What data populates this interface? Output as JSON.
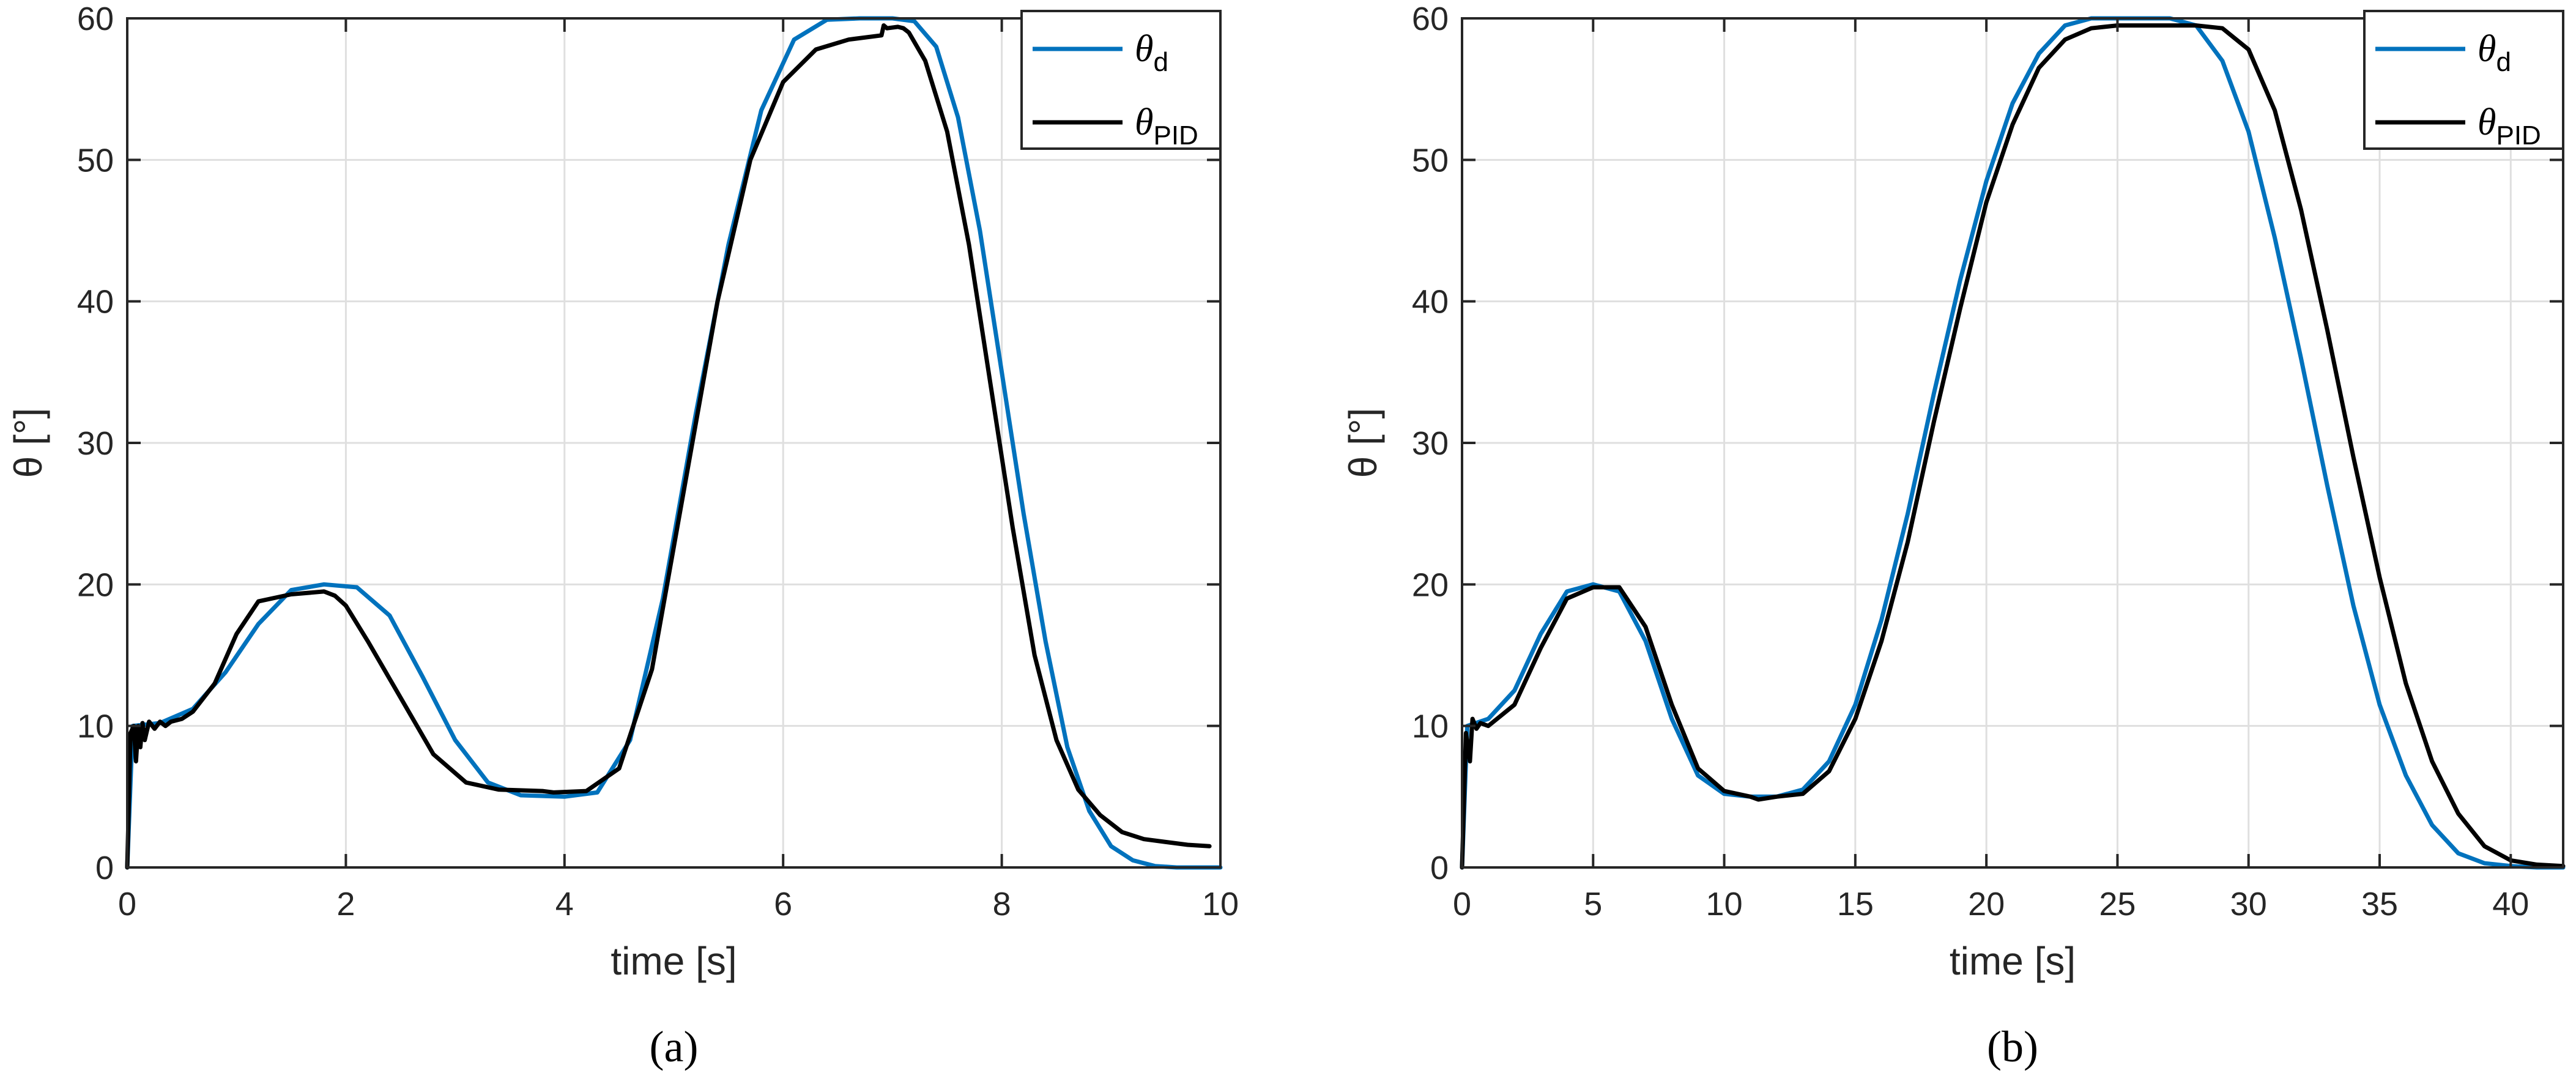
{
  "chart_data": [
    {
      "type": "line",
      "panel_label": "(a)",
      "xlabel": "time [s]",
      "ylabel": "θ [°]",
      "xlim": [
        0,
        10
      ],
      "ylim": [
        0,
        60
      ],
      "xticks": [
        0,
        2,
        4,
        6,
        8,
        10
      ],
      "yticks": [
        0,
        10,
        20,
        30,
        40,
        50,
        60
      ],
      "grid": true,
      "legend_position": "top-right",
      "colors": {
        "desired": "#0072BD",
        "pid": "#000000"
      },
      "series": [
        {
          "name": "θd",
          "legend_main": "θ",
          "legend_sub": "d",
          "x": [
            0,
            0.05,
            0.3,
            0.6,
            0.9,
            1.2,
            1.5,
            1.8,
            2.1,
            2.4,
            2.7,
            3.0,
            3.3,
            3.6,
            4.0,
            4.3,
            4.6,
            4.9,
            5.2,
            5.5,
            5.8,
            6.1,
            6.4,
            6.7,
            7.0,
            7.2,
            7.4,
            7.6,
            7.8,
            8.0,
            8.2,
            8.4,
            8.6,
            8.8,
            9.0,
            9.2,
            9.4,
            9.6,
            9.8,
            10.0
          ],
          "y": [
            0,
            10,
            10.2,
            11.2,
            13.8,
            17.2,
            19.6,
            20,
            19.8,
            17.8,
            13.5,
            9,
            6,
            5.1,
            5,
            5.3,
            9,
            19,
            32,
            44,
            53.5,
            58.5,
            59.9,
            60,
            60,
            59.8,
            58,
            53,
            45,
            35,
            25,
            16,
            8.5,
            4,
            1.5,
            0.5,
            0.1,
            0,
            0,
            0
          ]
        },
        {
          "name": "θPID",
          "legend_main": "θ",
          "legend_sub": "PID",
          "x": [
            0,
            0.03,
            0.06,
            0.08,
            0.1,
            0.12,
            0.14,
            0.16,
            0.2,
            0.25,
            0.3,
            0.35,
            0.4,
            0.5,
            0.6,
            0.8,
            1.0,
            1.2,
            1.5,
            1.8,
            1.9,
            2.0,
            2.2,
            2.5,
            2.8,
            3.1,
            3.4,
            3.8,
            3.9,
            4.2,
            4.5,
            4.8,
            5.1,
            5.4,
            5.7,
            6.0,
            6.3,
            6.6,
            6.9,
            6.92,
            6.95,
            7.05,
            7.1,
            7.15,
            7.3,
            7.5,
            7.7,
            7.9,
            8.1,
            8.3,
            8.5,
            8.7,
            8.9,
            9.1,
            9.3,
            9.5,
            9.7,
            9.9
          ],
          "y": [
            0,
            9.5,
            10,
            7.5,
            10,
            8.5,
            10.2,
            9,
            10.3,
            9.8,
            10.3,
            10,
            10.3,
            10.5,
            11,
            13,
            16.5,
            18.8,
            19.3,
            19.5,
            19.2,
            18.5,
            16,
            12,
            8,
            6,
            5.5,
            5.4,
            5.3,
            5.4,
            7,
            14,
            27,
            40,
            50,
            55.5,
            57.8,
            58.5,
            58.8,
            59.5,
            59.3,
            59.4,
            59.3,
            59,
            57,
            52,
            44,
            34,
            24,
            15,
            9,
            5.5,
            3.7,
            2.5,
            2,
            1.8,
            1.6,
            1.5
          ]
        }
      ]
    },
    {
      "type": "line",
      "panel_label": "(b)",
      "xlabel": "time [s]",
      "ylabel": "θ [°]",
      "xlim": [
        0,
        42
      ],
      "ylim": [
        0,
        60
      ],
      "xticks": [
        0,
        5,
        10,
        15,
        20,
        25,
        30,
        35,
        40
      ],
      "yticks": [
        0,
        10,
        20,
        30,
        40,
        50,
        60
      ],
      "grid": true,
      "legend_position": "top-right",
      "colors": {
        "desired": "#0072BD",
        "pid": "#000000"
      },
      "series": [
        {
          "name": "θd",
          "legend_main": "θ",
          "legend_sub": "d",
          "x": [
            0,
            0.2,
            1,
            2,
            3,
            4,
            5,
            6,
            7,
            8,
            9,
            10,
            11,
            12,
            13,
            14,
            15,
            16,
            17,
            18,
            19,
            20,
            21,
            22,
            23,
            24,
            25,
            26,
            27,
            28,
            29,
            30,
            31,
            32,
            33,
            34,
            35,
            36,
            37,
            38,
            39,
            40,
            41,
            42
          ],
          "y": [
            0,
            10,
            10.5,
            12.5,
            16.5,
            19.5,
            20,
            19.5,
            16,
            10.5,
            6.5,
            5.2,
            5,
            5,
            5.5,
            7.5,
            11.5,
            17.5,
            25,
            33.5,
            41.5,
            48.5,
            54,
            57.5,
            59.5,
            60,
            60,
            60,
            60,
            59.5,
            57,
            52,
            44.5,
            36,
            27,
            18.5,
            11.5,
            6.5,
            3,
            1,
            0.3,
            0.1,
            0,
            0
          ]
        },
        {
          "name": "θPID",
          "legend_main": "θ",
          "legend_sub": "PID",
          "x": [
            0,
            0.15,
            0.3,
            0.4,
            0.55,
            0.7,
            1,
            2,
            3,
            4,
            5,
            6,
            7,
            8,
            9,
            10,
            11,
            11.3,
            12,
            13,
            14,
            15,
            16,
            17,
            18,
            19,
            20,
            21,
            22,
            23,
            24,
            25,
            26,
            27,
            28,
            29,
            30,
            31,
            32,
            33,
            34,
            35,
            36,
            37,
            38,
            39,
            40,
            41,
            42
          ],
          "y": [
            0,
            9.5,
            7.5,
            10.5,
            9.8,
            10.2,
            10,
            11.5,
            15.5,
            19,
            19.8,
            19.8,
            17,
            11.5,
            7,
            5.4,
            5,
            4.8,
            5,
            5.2,
            6.8,
            10.5,
            16,
            23,
            31.5,
            39.5,
            47,
            52.5,
            56.5,
            58.5,
            59.3,
            59.5,
            59.5,
            59.5,
            59.5,
            59.3,
            57.8,
            53.5,
            46.5,
            38,
            29,
            20.5,
            13,
            7.5,
            3.8,
            1.5,
            0.5,
            0.2,
            0.1
          ]
        }
      ]
    }
  ]
}
